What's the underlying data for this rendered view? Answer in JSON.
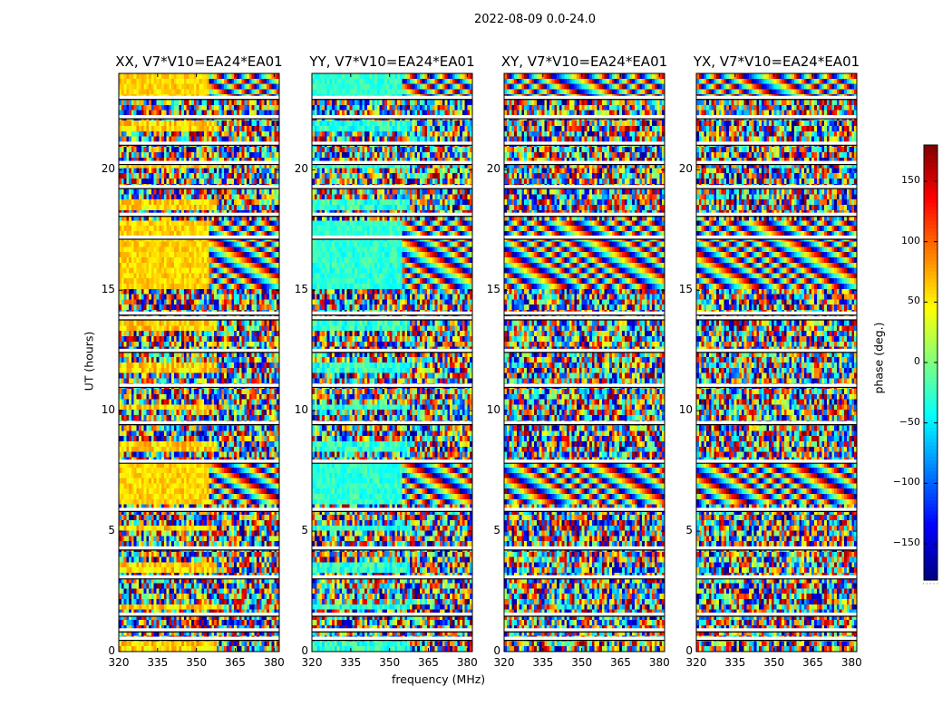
{
  "chart_data": {
    "type": "heatmap",
    "suptitle": "2022-08-09 0.0-24.0",
    "xlabel": "frequency (MHz)",
    "ylabel": "UT (hours)",
    "xlim": [
      320,
      382
    ],
    "ylim": [
      0,
      24
    ],
    "xticks": [
      320,
      335,
      350,
      365,
      380
    ],
    "yticks": [
      0,
      5,
      10,
      15,
      20
    ],
    "colormap": "jet",
    "colorbar": {
      "label": "phase (deg.)",
      "range": [
        -180,
        180
      ],
      "ticks": [
        150,
        100,
        50,
        0,
        -50,
        -100,
        -150
      ],
      "tick_labels": [
        "150",
        "100",
        "50",
        "0",
        "−50",
        "−100",
        "−150"
      ]
    },
    "panels": [
      {
        "title": "XX, V7*V10=EA24*EA01",
        "base_phase": 60
      },
      {
        "title": "YY, V7*V10=EA24*EA01",
        "base_phase": -30
      },
      {
        "title": "XY, V7*V10=EA24*EA01",
        "base_phase": 0
      },
      {
        "title": "YX, V7*V10=EA24*EA01",
        "base_phase": 90
      }
    ],
    "flagged_ut_hours": [
      0.55,
      0.9,
      1.55,
      3.1,
      4.3,
      5.9,
      7.9,
      9.5,
      11.05,
      12.5,
      13.85,
      14.05,
      17.2,
      18.15,
      19.3,
      20.3,
      21.1,
      22.2,
      23.0
    ]
  },
  "colors": {
    "jet": [
      "#00007f",
      "#0000ff",
      "#007fff",
      "#00ffff",
      "#7fff7f",
      "#ffff00",
      "#ff7f00",
      "#ff0000",
      "#7f0000"
    ]
  }
}
